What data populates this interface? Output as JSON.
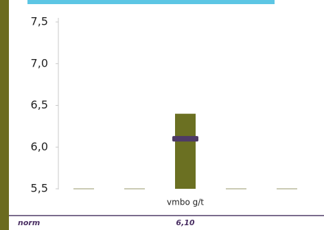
{
  "chart_data": {
    "type": "bar",
    "categories": [
      null,
      null,
      "vmbo g/t",
      null,
      null
    ],
    "values": [
      5.5,
      5.5,
      6.4,
      5.5,
      5.5
    ],
    "color": "#6b7022",
    "ylim": [
      5.5,
      7.5
    ],
    "yticks": [
      {
        "value": 5.5,
        "label": "5,5"
      },
      {
        "value": 6.0,
        "label": "6,0"
      },
      {
        "value": 6.5,
        "label": "6,5"
      },
      {
        "value": 7.0,
        "label": "7,0"
      },
      {
        "value": 7.5,
        "label": "7,5"
      }
    ],
    "norm": {
      "name": "norm",
      "value": 6.1,
      "value_label": "6,10",
      "color": "#4e3a66"
    }
  }
}
